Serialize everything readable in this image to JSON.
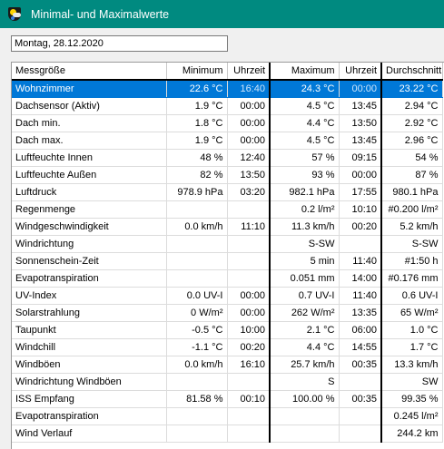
{
  "window": {
    "title": "Minimal- und Maximalwerte",
    "icon": "weather-app-icon"
  },
  "date_field": {
    "value": "Montag, 28.12.2020"
  },
  "table": {
    "headers": [
      "Messgröße",
      "Minimum",
      "Uhrzeit",
      "Maximum",
      "Uhrzeit",
      "Durchschnitt"
    ],
    "rows": [
      [
        "Wohnzimmer",
        "22.6 °C",
        "16:40",
        "24.3 °C",
        "00:00",
        "23.22 °C"
      ],
      [
        "Dachsensor (Aktiv)",
        "1.9 °C",
        "00:00",
        "4.5 °C",
        "13:45",
        "2.94 °C"
      ],
      [
        "Dach min.",
        "1.8 °C",
        "00:00",
        "4.4 °C",
        "13:50",
        "2.92 °C"
      ],
      [
        "Dach max.",
        "1.9 °C",
        "00:00",
        "4.5 °C",
        "13:45",
        "2.96 °C"
      ],
      [
        "Luftfeuchte Innen",
        "48 %",
        "12:40",
        "57 %",
        "09:15",
        "54 %"
      ],
      [
        "Luftfeuchte Außen",
        "82 %",
        "13:50",
        "93 %",
        "00:00",
        "87 %"
      ],
      [
        "Luftdruck",
        "978.9 hPa",
        "03:20",
        "982.1 hPa",
        "17:55",
        "980.1 hPa"
      ],
      [
        "Regenmenge",
        "",
        "",
        "0.2 l/m²",
        "10:10",
        "#0.200 l/m²"
      ],
      [
        "Windgeschwindigkeit",
        "0.0 km/h",
        "11:10",
        "11.3 km/h",
        "00:20",
        "5.2 km/h"
      ],
      [
        "Windrichtung",
        "",
        "",
        "S-SW",
        "",
        "S-SW"
      ],
      [
        "Sonnenschein-Zeit",
        "",
        "",
        "5 min",
        "11:40",
        "#1:50 h"
      ],
      [
        "Evapotranspiration",
        "",
        "",
        "0.051 mm",
        "14:00",
        "#0.176 mm"
      ],
      [
        "UV-Index",
        "0.0 UV-I",
        "00:00",
        "0.7 UV-I",
        "11:40",
        "0.6 UV-I"
      ],
      [
        "Solarstrahlung",
        "0 W/m²",
        "00:00",
        "262 W/m²",
        "13:35",
        "65 W/m²"
      ],
      [
        "Taupunkt",
        "-0.5 °C",
        "10:00",
        "2.1 °C",
        "06:00",
        "1.0 °C"
      ],
      [
        "Windchill",
        "-1.1 °C",
        "00:20",
        "4.4 °C",
        "14:55",
        "1.7 °C"
      ],
      [
        "Windböen",
        "0.0 km/h",
        "16:10",
        "25.7 km/h",
        "00:35",
        "13.3 km/h"
      ],
      [
        "Windrichtung Windböen",
        "",
        "",
        "S",
        "",
        "SW"
      ],
      [
        "ISS Empfang",
        "81.58 %",
        "00:10",
        "100.00 %",
        "00:35",
        "99.35 %"
      ],
      [
        "Evapotranspiration",
        "",
        "",
        "",
        "",
        "0.245 l/m²"
      ],
      [
        "Wind Verlauf",
        "",
        "",
        "",
        "",
        "244.2 km"
      ]
    ],
    "selected_row": 0
  },
  "colors": {
    "titlebar": "#008a80",
    "selection": "#0078d7"
  }
}
